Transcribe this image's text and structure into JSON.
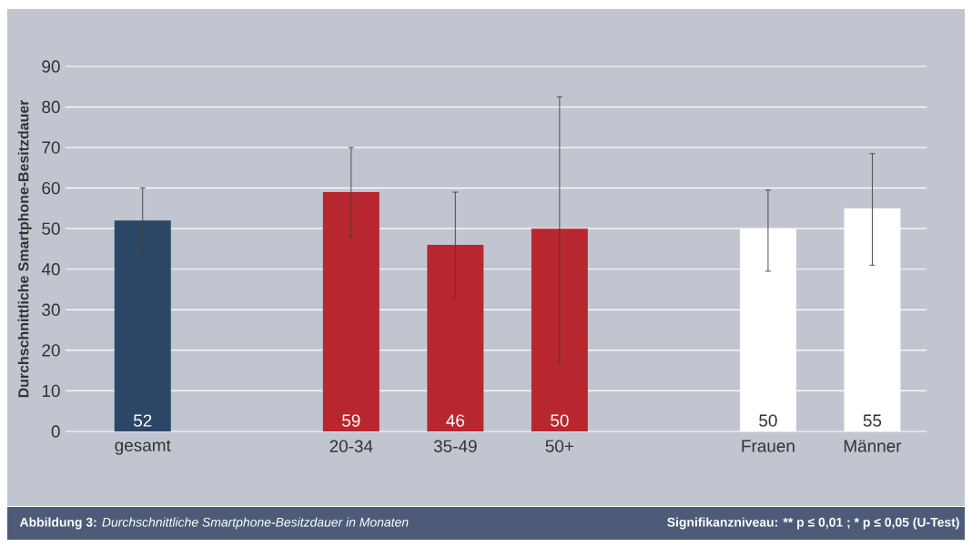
{
  "chart_data": {
    "type": "bar",
    "ylabel": "Durchschnittliche Smartphone-Besitzdauer",
    "categories": [
      "gesamt",
      null,
      "20-34",
      "35-49",
      "50+",
      null,
      "Frauen",
      "Männer"
    ],
    "values": [
      52,
      null,
      59,
      46,
      50,
      null,
      50,
      55
    ],
    "errors": [
      [
        44,
        60
      ],
      null,
      [
        48,
        70
      ],
      [
        33,
        59
      ],
      [
        17,
        82.5
      ],
      null,
      [
        39.5,
        59.5
      ],
      [
        41,
        68.5
      ]
    ],
    "colors": [
      "#2c4665",
      null,
      "#b8272f",
      "#b8272f",
      "#b8272f",
      null,
      "#ffffff",
      "#ffffff"
    ],
    "data_labels": true,
    "ylim": [
      0,
      90
    ],
    "yticks": [
      0,
      10,
      20,
      30,
      40,
      50,
      60,
      70,
      80,
      90
    ],
    "grid": "y",
    "annotations": [
      "**Abbildung 3:** *Durchschnittliche Smartphone-Besitzdauer in Monaten*",
      "Signifikanzniveau: ** p ≤ 0,01 ; * p ≤ 0,05  (U-Test)"
    ]
  }
}
